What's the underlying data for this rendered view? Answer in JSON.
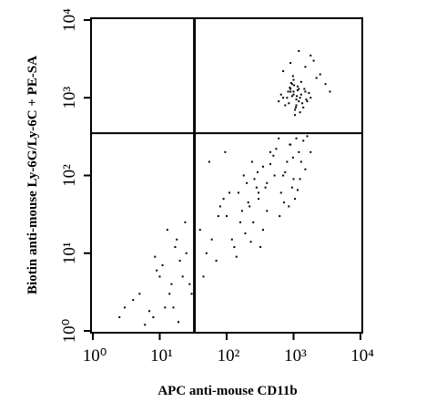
{
  "chart_data": {
    "type": "scatter",
    "x_label": "APC anti-mouse CD11b",
    "y_label": "Biotin anti-mouse Ly-6G/Ly-6C + PE-SA",
    "x_scale": "log",
    "y_scale": "log",
    "xlim": [
      1,
      10000
    ],
    "ylim": [
      1,
      10000
    ],
    "xticks": [
      {
        "value": 1,
        "label": "10⁰"
      },
      {
        "value": 10,
        "label": "10¹"
      },
      {
        "value": 100,
        "label": "10²"
      },
      {
        "value": 1000,
        "label": "10³"
      },
      {
        "value": 10000,
        "label": "10⁴"
      }
    ],
    "yticks": [
      {
        "value": 1,
        "label": "10⁰"
      },
      {
        "value": 10,
        "label": "10¹"
      },
      {
        "value": 100,
        "label": "10²"
      },
      {
        "value": 1000,
        "label": "10³"
      },
      {
        "value": 10000,
        "label": "10⁴"
      }
    ],
    "gates": {
      "x": 33,
      "y": 350
    },
    "color": "#000000",
    "x": [
      800,
      1000,
      1200,
      900,
      1100,
      1300,
      700,
      1500,
      950,
      1050,
      850,
      1150,
      1250,
      1400,
      650,
      1000,
      1100,
      900,
      1200,
      1600,
      750,
      1300,
      1000,
      1050,
      950,
      1150,
      1800,
      1350,
      880,
      1020,
      1700,
      600,
      1450,
      1250,
      980,
      1120,
      830,
      1550,
      1080,
      920,
      600,
      900,
      1200,
      500,
      800,
      1500,
      700,
      1000,
      400,
      1100,
      650,
      950,
      1300,
      550,
      850,
      300,
      750,
      1050,
      450,
      1250,
      1800,
      620,
      880,
      1400,
      350,
      980,
      720,
      1150,
      520,
      1600,
      40,
      60,
      80,
      100,
      150,
      200,
      250,
      300,
      50,
      70,
      120,
      180,
      220,
      280,
      350,
      400,
      90,
      130,
      160,
      240,
      45,
      110,
      190,
      260,
      320,
      75,
      140,
      210,
      380,
      450,
      55,
      95,
      170,
      230,
      290,
      3,
      5,
      8,
      10,
      12,
      15,
      20,
      25,
      6,
      9,
      14,
      18,
      4,
      7,
      11,
      16,
      22,
      28,
      13,
      19,
      2.5,
      8.5,
      17,
      24,
      30,
      1500,
      2000,
      2500,
      700,
      3000,
      1200,
      1800,
      900,
      2200,
      3500
    ],
    "y": [
      1000,
      1200,
      900,
      1300,
      800,
      1100,
      1000,
      1200,
      1500,
      700,
      850,
      1400,
      1000,
      750,
      1100,
      1700,
      950,
      1200,
      1300,
      900,
      800,
      1600,
      1100,
      600,
      1050,
      1250,
      1000,
      850,
      1350,
      1450,
      1150,
      900,
      1300,
      650,
      1900,
      1050,
      1200,
      950,
      750,
      1550,
      300,
      250,
      200,
      180,
      150,
      120,
      100,
      90,
      80,
      300,
      60,
      70,
      150,
      220,
      40,
      60,
      110,
      50,
      140,
      90,
      200,
      30,
      250,
      280,
      130,
      170,
      45,
      65,
      100,
      320,
      20,
      15,
      40,
      30,
      60,
      80,
      25,
      50,
      10,
      8,
      15,
      100,
      40,
      70,
      20,
      35,
      50,
      12,
      25,
      150,
      5,
      60,
      18,
      90,
      12,
      30,
      9,
      45,
      70,
      200,
      150,
      200,
      35,
      14,
      110,
      2,
      3,
      1.5,
      5,
      2,
      4,
      8,
      10,
      1.2,
      6,
      3,
      15,
      2.5,
      1.8,
      7,
      2,
      5,
      4,
      20,
      1.3,
      1.5,
      9,
      12,
      25,
      3,
      2500,
      3000,
      2000,
      2200,
      1500,
      4000,
      3500,
      2800,
      1800,
      1200
    ]
  }
}
